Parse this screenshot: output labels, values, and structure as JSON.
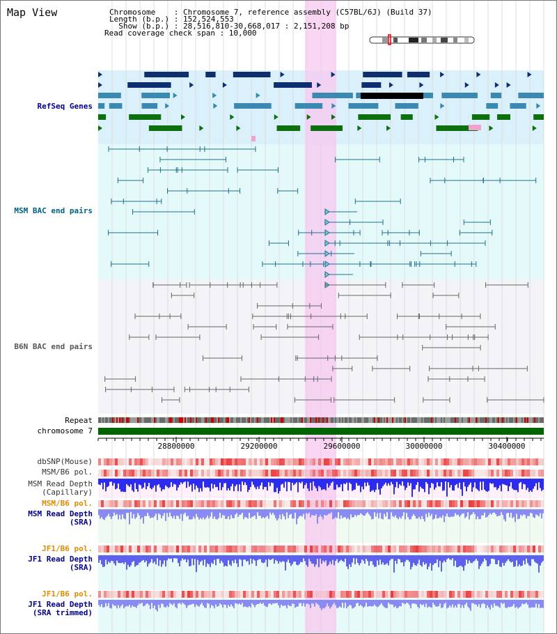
{
  "header": {
    "title": "Map View",
    "chromosome_line": "Chromosome    : Chromosome 7, reference assembly (C57BL/6J) (Build 37)",
    "length_line": "Length (b.p.) : 152,524,553",
    "show_line": "  Show (b.p.) : 28,516,810-30,668,017 : 2,151,208 bp",
    "coverage_line": "Read coverage check span : 10,000"
  },
  "tracks": {
    "refseq": "RefSeq Genes",
    "msm_bac": "MSM BAC end pairs",
    "b6n_bac": "B6N BAC end pairs",
    "repeat": "Repeat",
    "chromosome": "chromosome 7",
    "dbsnp": "dbSNP(Mouse)",
    "msm_b6_pol_1": "MSM/B6 pol.",
    "msm_read_depth_cap_1": "MSM Read Depth",
    "msm_read_depth_cap_2": "(Capillary)",
    "msm_b6_pol_2": "MSM/B6 pol.",
    "msm_read_depth_sra_1": "MSM Read Depth",
    "msm_read_depth_sra_2": "(SRA)",
    "jf1_b6_pol_1": "JF1/B6 pol.",
    "jf1_read_depth_sra_1": "JF1 Read Depth",
    "jf1_read_depth_sra_2": "(SRA)",
    "jf1_b6_pol_2": "JF1/B6 pol.",
    "jf1_read_depth_trim_1": "JF1 Read Depth",
    "jf1_read_depth_trim_2": "(SRA trimmed)"
  },
  "axis": {
    "ticks": [
      "28800000",
      "29200000",
      "29600000",
      "30000000",
      "30400000"
    ]
  },
  "colors": {
    "navy_label": "#00008b",
    "teal_label": "#006080",
    "gray_label": "#555555",
    "orange_label": "#e08a00",
    "highlight": "#f7d4f0",
    "chrom_green": "#006400"
  }
}
